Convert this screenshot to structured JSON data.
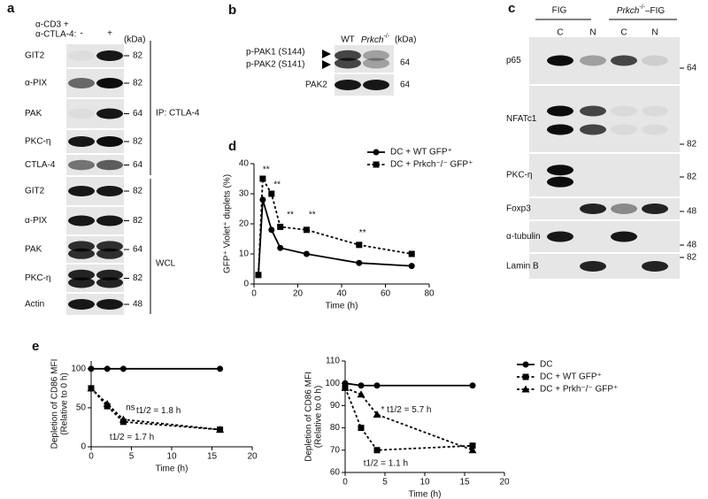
{
  "panel_labels": [
    "a",
    "b",
    "c",
    "d",
    "e"
  ],
  "panel_a": {
    "header": [
      "α-CD3 +",
      "α-CTLA-4:"
    ],
    "lanes": [
      "-",
      "+"
    ],
    "unit": "(kDa)",
    "rows": [
      {
        "label": "GIT2",
        "markers": [
          "82"
        ]
      },
      {
        "label": "α-PIX",
        "markers": [
          "82"
        ]
      },
      {
        "label": "PAK",
        "markers": [
          "64"
        ]
      },
      {
        "label": "PKC-η",
        "markers": [
          "82"
        ]
      },
      {
        "label": "CTLA-4",
        "markers": [
          "64"
        ]
      },
      {
        "label": "GIT2",
        "markers": [
          "82"
        ]
      },
      {
        "label": "α-PIX",
        "markers": [
          "82"
        ]
      },
      {
        "label": "PAK",
        "markers": [
          "64"
        ]
      },
      {
        "label": "PKC-η",
        "markers": [
          "82"
        ]
      },
      {
        "label": "Actin",
        "markers": [
          "48"
        ]
      }
    ],
    "groups": [
      "IP: CTLA-4",
      "WCL"
    ]
  },
  "panel_b": {
    "lanes": [
      "WT",
      {
        "text": "Prkch",
        "sup": "-/-"
      }
    ],
    "unit": "(kDa)",
    "arrows": [
      "p-PAK1 (S144)",
      "p-PAK2 (S141)"
    ],
    "markers": [
      "64",
      "64"
    ],
    "rows": [
      "PAK2"
    ]
  },
  "panel_c": {
    "groups": [
      "FIG",
      {
        "text": "Prkch",
        "sup": "-/-",
        "suffix": "–FIG"
      }
    ],
    "lanes": [
      "C",
      "N",
      "C",
      "N"
    ],
    "rows": [
      {
        "label": "p65",
        "markers": [
          "64"
        ]
      },
      {
        "label": "NFATc1",
        "markers": [
          "82"
        ]
      },
      {
        "label": "PKC-η",
        "markers": [
          "82"
        ]
      },
      {
        "label": "Foxp3",
        "markers": [
          "48"
        ]
      },
      {
        "label": "α-tubulin",
        "markers": [
          "48"
        ]
      },
      {
        "label": "Lamin B",
        "markers": [
          "82"
        ]
      }
    ]
  },
  "chart_data": [
    {
      "type": "line",
      "x_label": "Time (h)",
      "y_label": [
        "GFP⁺ Violet⁺ duplets (%)"
      ],
      "x": [
        2,
        4,
        8,
        12,
        24,
        48,
        72
      ],
      "xlim": [
        0,
        80
      ],
      "xticks": [
        0,
        20,
        40,
        60,
        80
      ],
      "ylim": [
        0,
        40
      ],
      "yticks": [
        0,
        10,
        20,
        30,
        40
      ],
      "legend": "top-right",
      "series": [
        {
          "name": "DC + WT GFP⁺",
          "color": "#000000",
          "dashed": false,
          "marker": "circle",
          "values": [
            3,
            28,
            18,
            12,
            10,
            7,
            6
          ]
        },
        {
          "name": "DC + Prkch⁻/⁻ GFP⁺",
          "color": "#000000",
          "dashed": true,
          "marker": "square",
          "values": [
            3,
            35,
            30,
            19,
            18,
            13,
            10
          ]
        }
      ],
      "annotations": [
        {
          "text": "**",
          "x": 4,
          "y": 38
        },
        {
          "text": "**",
          "x": 9,
          "y": 33
        },
        {
          "text": "**",
          "x": 15,
          "y": 23
        },
        {
          "text": "**",
          "x": 25,
          "y": 23
        },
        {
          "text": "**",
          "x": 48,
          "y": 17
        }
      ]
    },
    {
      "type": "line",
      "x_label": "Time (h)",
      "y_label": [
        "Depletion of CD86 MFI",
        "(Relative to 0 h)"
      ],
      "x": [
        0,
        2,
        4,
        16
      ],
      "xlim": [
        0,
        20
      ],
      "xticks": [
        0,
        5,
        10,
        15,
        20
      ],
      "ylim": [
        0,
        110
      ],
      "yticks": [
        0,
        50,
        100
      ],
      "series": [
        {
          "color": "#000000",
          "dashed": false,
          "marker": "circle",
          "values": [
            100,
            100,
            100,
            100
          ]
        },
        {
          "color": "#000000",
          "dashed": true,
          "marker": "square",
          "values": [
            75,
            52,
            32,
            22
          ]
        },
        {
          "color": "#000000",
          "dashed": true,
          "marker": "triangle",
          "values": [
            75,
            55,
            35,
            22
          ]
        }
      ],
      "annotations": [
        {
          "text": "ns",
          "x": 4.3,
          "y": 50
        },
        {
          "text": "t1/2 = 1.8 h",
          "x": 5.6,
          "y": 46
        },
        {
          "text": "t1/2 = 1.7 h",
          "x": 2.3,
          "y": 12
        }
      ]
    },
    {
      "type": "line",
      "x_label": "Time (h)",
      "y_label": [
        "Depletion of CD86 MFI",
        "(Relative to 0 h)"
      ],
      "x": [
        0,
        2,
        4,
        16
      ],
      "xlim": [
        0,
        20
      ],
      "xticks": [
        0,
        5,
        10,
        15,
        20
      ],
      "ylim": [
        60,
        110
      ],
      "yticks": [
        60,
        70,
        80,
        90,
        100,
        110
      ],
      "legend": "outside-right",
      "series": [
        {
          "name": "DC",
          "color": "#000000",
          "dashed": false,
          "marker": "circle",
          "values": [
            100,
            99,
            99,
            99
          ]
        },
        {
          "name": "DC + WT GFP⁺",
          "color": "#000000",
          "dashed": true,
          "marker": "square",
          "values": [
            98,
            80,
            70,
            72
          ]
        },
        {
          "name": "DC + Prkh⁻/⁻ GFP⁺",
          "color": "#000000",
          "dashed": true,
          "marker": "triangle",
          "values": [
            98,
            95,
            86,
            70
          ]
        }
      ],
      "annotations": [
        {
          "text": "* t1/2 = 5.7 h",
          "x": 4.5,
          "y": 88
        },
        {
          "text": "t1/2 = 1.1 h",
          "x": 2.3,
          "y": 64
        }
      ]
    }
  ]
}
